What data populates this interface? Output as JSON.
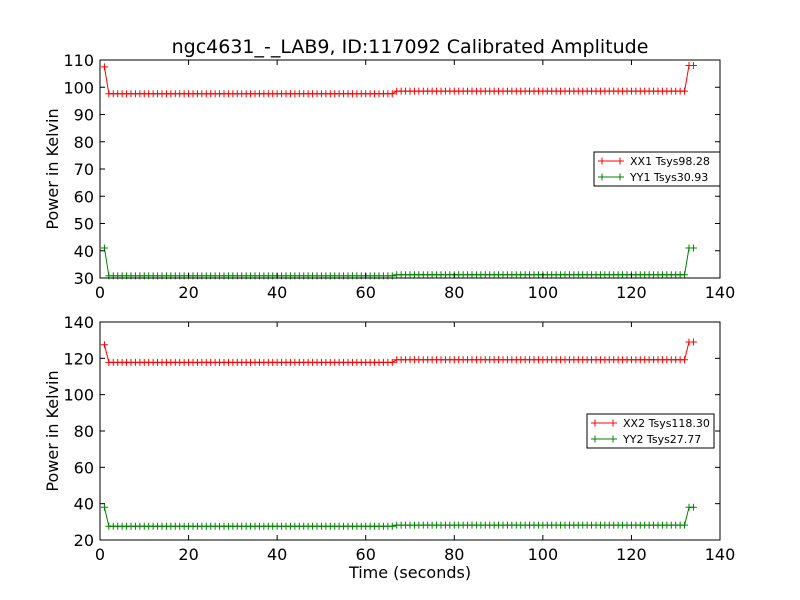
{
  "chart_data": [
    {
      "type": "line",
      "title": "ngc4631_-_LAB9, ID:117092 Calibrated Amplitude",
      "xlabel": "",
      "ylabel": "Power in Kelvin",
      "xlim": [
        0,
        140
      ],
      "ylim": [
        30,
        110
      ],
      "xticks": [
        0,
        20,
        40,
        60,
        80,
        100,
        120,
        140
      ],
      "yticks": [
        30,
        40,
        50,
        60,
        70,
        80,
        90,
        100,
        110
      ],
      "grid": false,
      "legend_position": "center-right",
      "series": [
        {
          "name": "XX1 Tsys98.28",
          "color": "#ff0000",
          "marker": "+",
          "segments": [
            {
              "x0": 1,
              "x1": 2,
              "y": 107.5
            },
            {
              "x0": 2,
              "x1": 67,
              "y": 97.6
            },
            {
              "x0": 67,
              "x1": 133,
              "y": 98.6
            },
            {
              "x0": 133,
              "x1": 134,
              "y": 108
            }
          ]
        },
        {
          "name": "YY1 Tsys30.93",
          "color": "#008000",
          "marker": "+",
          "segments": [
            {
              "x0": 1,
              "x1": 2,
              "y": 41
            },
            {
              "x0": 2,
              "x1": 67,
              "y": 30.8
            },
            {
              "x0": 67,
              "x1": 133,
              "y": 31.2
            },
            {
              "x0": 133,
              "x1": 134,
              "y": 41
            }
          ]
        }
      ]
    },
    {
      "type": "line",
      "title": "",
      "xlabel": "Time (seconds)",
      "ylabel": "Power in Kelvin",
      "xlim": [
        0,
        140
      ],
      "ylim": [
        20,
        140
      ],
      "xticks": [
        0,
        20,
        40,
        60,
        80,
        100,
        120,
        140
      ],
      "yticks": [
        20,
        40,
        60,
        80,
        100,
        120,
        140
      ],
      "grid": false,
      "legend_position": "center-right",
      "series": [
        {
          "name": "XX2 Tsys118.30",
          "color": "#ff0000",
          "marker": "+",
          "segments": [
            {
              "x0": 1,
              "x1": 2,
              "y": 127.5
            },
            {
              "x0": 2,
              "x1": 67,
              "y": 117.8
            },
            {
              "x0": 67,
              "x1": 133,
              "y": 119.2
            },
            {
              "x0": 133,
              "x1": 134,
              "y": 129
            }
          ]
        },
        {
          "name": "YY2 Tsys27.77",
          "color": "#008000",
          "marker": "+",
          "segments": [
            {
              "x0": 1,
              "x1": 2,
              "y": 38
            },
            {
              "x0": 2,
              "x1": 67,
              "y": 27.6
            },
            {
              "x0": 67,
              "x1": 133,
              "y": 28.2
            },
            {
              "x0": 133,
              "x1": 134,
              "y": 38
            }
          ]
        }
      ]
    }
  ]
}
